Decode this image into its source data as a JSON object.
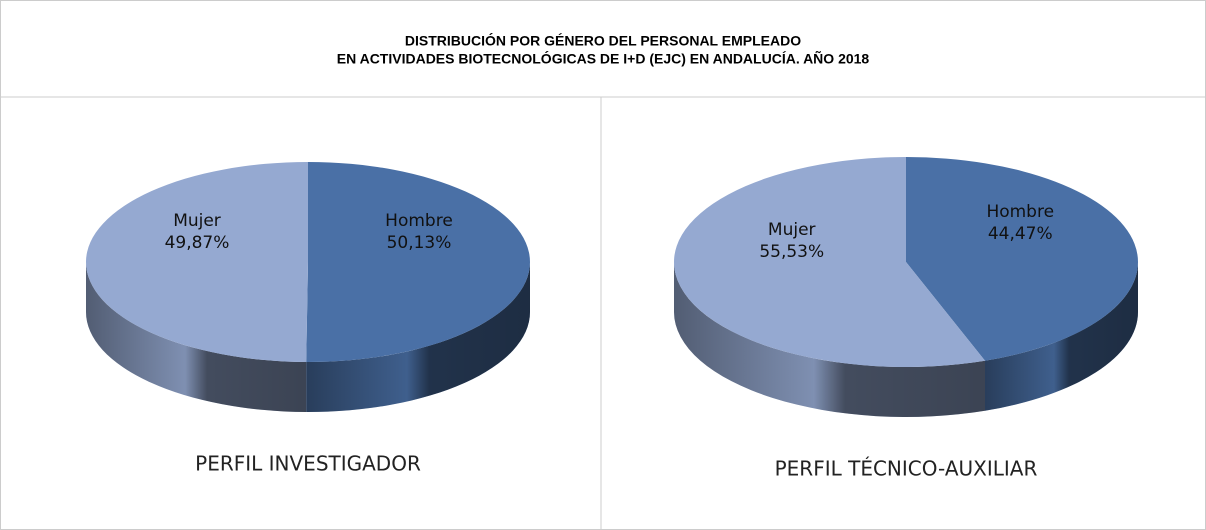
{
  "title": [
    "DISTRIBUCIÓN POR GÉNERO DEL PERSONAL EMPLEADO",
    "EN ACTIVIDADES BIOTECNOLÓGICAS DE I+D (EJC) EN ANDALUCÍA. AÑO 2018"
  ],
  "chart_data": [
    {
      "type": "pie",
      "title": "PERFIL INVESTIGADOR",
      "categories": [
        "Hombre",
        "Mujer"
      ],
      "values": [
        50.13,
        49.87
      ],
      "value_labels": [
        "50,13%",
        "49,87%"
      ],
      "colors": [
        "#4a70a6",
        "#95a9d1"
      ]
    },
    {
      "type": "pie",
      "title": "PERFIL TÉCNICO-AUXILIAR",
      "categories": [
        "Hombre",
        "Mujer"
      ],
      "values": [
        44.47,
        55.53
      ],
      "value_labels": [
        "44,47%",
        "55,53%"
      ],
      "colors": [
        "#4a70a6",
        "#95a9d1"
      ]
    }
  ]
}
